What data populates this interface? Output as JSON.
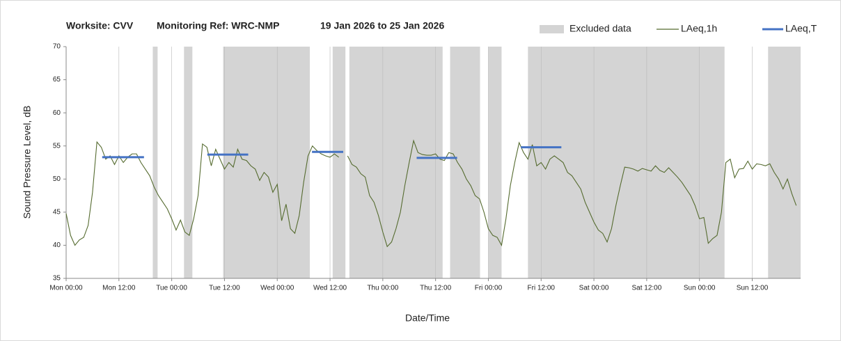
{
  "chart_data": {
    "type": "line",
    "title": [
      "Worksite: CVV",
      "Monitoring Ref: WRC-NMP",
      "19 Jan 2026 to 25 Jan 2026"
    ],
    "x_label": "Date/Time",
    "y_label": "Sound Pressure Level, dB",
    "xlim": [
      0,
      167
    ],
    "ylim": [
      35,
      70
    ],
    "xticks": [
      {
        "value": 0,
        "label": "Mon 00:00"
      },
      {
        "value": 12,
        "label": "Mon 12:00"
      },
      {
        "value": 24,
        "label": "Tue 00:00"
      },
      {
        "value": 36,
        "label": "Tue 12:00"
      },
      {
        "value": 48,
        "label": "Wed 00:00"
      },
      {
        "value": 60,
        "label": "Wed 12:00"
      },
      {
        "value": 72,
        "label": "Thu 00:00"
      },
      {
        "value": 84,
        "label": "Thu 12:00"
      },
      {
        "value": 96,
        "label": "Fri 00:00"
      },
      {
        "value": 108,
        "label": "Fri 12:00"
      },
      {
        "value": 120,
        "label": "Sat 00:00"
      },
      {
        "value": 132,
        "label": "Sat 12:00"
      },
      {
        "value": 144,
        "label": "Sun 00:00"
      },
      {
        "value": 156,
        "label": "Sun 12:00"
      }
    ],
    "yticks": [
      35,
      40,
      45,
      50,
      55,
      60,
      65,
      70
    ],
    "grid": "x",
    "excluded": {
      "name": "Excluded data",
      "color": "#d4d4d4",
      "ranges": [
        [
          19.7,
          20.8
        ],
        [
          26.8,
          28.7
        ],
        [
          35.7,
          55.4
        ],
        [
          60.6,
          63.5
        ],
        [
          64.4,
          85.6
        ],
        [
          87.3,
          94.1
        ],
        [
          96,
          99
        ],
        [
          105,
          149.7
        ],
        [
          159.6,
          167
        ]
      ]
    },
    "series": [
      {
        "name": "LAeq,1h",
        "color": "#556b2f",
        "x": [
          0,
          1,
          2,
          3,
          4,
          5,
          6,
          7,
          8,
          9,
          10,
          11,
          12,
          13,
          14,
          15,
          16,
          17,
          18,
          19,
          20,
          21,
          22,
          23,
          24,
          25,
          26,
          27,
          28,
          29,
          30,
          31,
          32,
          33,
          34,
          35,
          36,
          37,
          38,
          39,
          40,
          41,
          42,
          43,
          44,
          45,
          46,
          47,
          48,
          49,
          50,
          51,
          52,
          53,
          54,
          55,
          56,
          57,
          58,
          59,
          60,
          61,
          62,
          63,
          64,
          65,
          66,
          67,
          68,
          69,
          70,
          71,
          72,
          73,
          74,
          75,
          76,
          77,
          78,
          79,
          80,
          81,
          82,
          83,
          84,
          85,
          86,
          87,
          88,
          89,
          90,
          91,
          92,
          93,
          94,
          95,
          96,
          97,
          98,
          99,
          100,
          101,
          102,
          103,
          104,
          105,
          106,
          107,
          108,
          109,
          110,
          111,
          112,
          113,
          114,
          115,
          116,
          117,
          118,
          119,
          120,
          121,
          122,
          123,
          124,
          125,
          126,
          127,
          128,
          129,
          130,
          131,
          132,
          133,
          134,
          135,
          136,
          137,
          138,
          139,
          140,
          141,
          142,
          143,
          144,
          145,
          146,
          147,
          148,
          149,
          150,
          151,
          152,
          153,
          154,
          155,
          156,
          157,
          158,
          159,
          160,
          161,
          162,
          163,
          164,
          165,
          166
        ],
        "values": [
          44.8,
          41.5,
          40,
          40.8,
          41.2,
          43,
          48,
          55.6,
          54.8,
          53,
          53.5,
          52.2,
          53.5,
          52.5,
          53.3,
          53.8,
          53.8,
          52.5,
          51.5,
          50.5,
          48.8,
          47.5,
          46.5,
          45.5,
          44,
          42.3,
          43.8,
          42,
          41.5,
          44,
          47.5,
          55.3,
          54.8,
          52,
          54.5,
          53,
          51.5,
          52.5,
          51.8,
          54.5,
          53,
          52.8,
          52,
          51.5,
          49.8,
          51,
          50.3,
          48,
          49.2,
          43.7,
          46.2,
          42.5,
          41.8,
          44.5,
          49.5,
          53.5,
          55,
          54.3,
          53.8,
          53.5,
          53.3,
          53.8,
          53.3,
          null,
          53.5,
          52.2,
          51.8,
          50.8,
          50.3,
          47.5,
          46.5,
          44.5,
          42,
          39.8,
          40.5,
          42.5,
          45,
          49,
          52.5,
          55.8,
          54,
          53.7,
          53.6,
          53.6,
          53.8,
          53,
          52.8,
          54,
          53.8,
          52.5,
          51.5,
          50,
          49,
          47.5,
          47,
          45,
          42.5,
          41.5,
          41.2,
          40,
          44,
          49,
          52.5,
          55.5,
          54,
          53,
          55.2,
          52,
          52.5,
          51.5,
          53,
          53.5,
          53,
          52.5,
          51,
          50.5,
          49.5,
          48.5,
          46.5,
          45,
          43.5,
          42.3,
          41.8,
          40.5,
          42.5,
          46,
          49,
          51.8,
          51.7,
          51.5,
          51.2,
          51.6,
          51.4,
          51.2,
          52,
          51.3,
          51,
          51.7,
          51,
          50.3,
          49.5,
          48.5,
          47.5,
          46,
          44,
          44.2,
          40.3,
          41,
          41.5,
          45,
          52.5,
          53,
          50.2,
          51.5,
          51.6,
          52.7,
          51.5,
          52.3,
          52.2,
          52,
          52.3,
          51,
          50,
          48.5,
          50,
          47.8,
          46
        ]
      }
    ],
    "laeq_t": {
      "name": "LAeq,T",
      "color": "#4472c4",
      "segments": [
        {
          "x": [
            8.2,
            17.7
          ],
          "value": 53.3
        },
        {
          "x": [
            32.1,
            41.4
          ],
          "value": 53.7
        },
        {
          "x": [
            55.9,
            63
          ],
          "value": 54.1
        },
        {
          "x": [
            79.7,
            88.9
          ],
          "value": 53.2
        },
        {
          "x": [
            103.4,
            112.6
          ],
          "value": 54.8
        }
      ]
    }
  }
}
